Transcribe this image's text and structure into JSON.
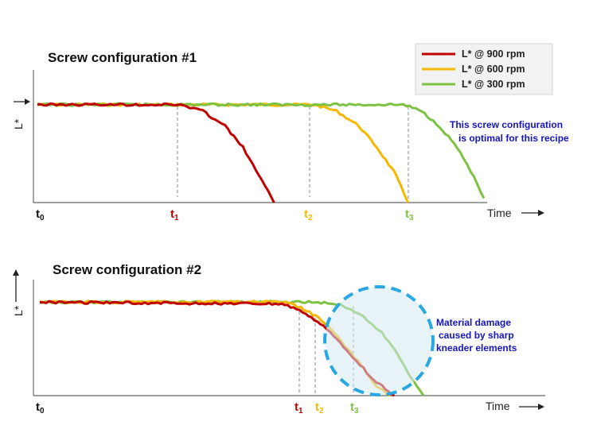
{
  "colors": {
    "rpm900": "#c00000",
    "rpm600": "#f4b800",
    "rpm300": "#7dc242",
    "note": "#1515c0",
    "circle": "#28a8e0"
  },
  "legend": [
    {
      "label": "L* @ 900 rpm",
      "color": "#c00000"
    },
    {
      "label": "L* @ 600 rpm",
      "color": "#f4b800"
    },
    {
      "label": "L* @ 300 rpm",
      "color": "#7dc242"
    }
  ],
  "chart_data": [
    {
      "type": "line",
      "title": "Screw configuration #1",
      "ylabel": "L*",
      "xlabel": "Time",
      "time_labels": [
        {
          "base": "t",
          "sub": "0",
          "color": "#111111"
        },
        {
          "base": "t",
          "sub": "1",
          "color": "#c00000"
        },
        {
          "base": "t",
          "sub": "2",
          "color": "#f4b800"
        },
        {
          "base": "t",
          "sub": "3",
          "color": "#7dc242"
        }
      ],
      "annotation": [
        "This screw configuration",
        "is optimal for this recipe"
      ],
      "series": [
        {
          "color": "#f4b800",
          "values": [
            [
              0,
              0.92
            ],
            [
              0.62,
              0.92
            ],
            [
              0.67,
              0.86
            ],
            [
              0.72,
              0.72
            ],
            [
              0.76,
              0.52
            ],
            [
              0.8,
              0.28
            ],
            [
              0.83,
              0.0
            ]
          ]
        },
        {
          "color": "#7dc242",
          "values": [
            [
              0,
              0.92
            ],
            [
              0.82,
              0.92
            ],
            [
              0.86,
              0.86
            ],
            [
              0.9,
              0.72
            ],
            [
              0.94,
              0.52
            ],
            [
              0.97,
              0.3
            ],
            [
              1.0,
              0.04
            ]
          ]
        },
        {
          "color": "#c00000",
          "values": [
            [
              0,
              0.92
            ],
            [
              0.32,
              0.92
            ],
            [
              0.37,
              0.86
            ],
            [
              0.42,
              0.72
            ],
            [
              0.46,
              0.52
            ],
            [
              0.49,
              0.3
            ],
            [
              0.53,
              0.0
            ]
          ]
        }
      ]
    },
    {
      "type": "line",
      "title": "Screw configuration #2",
      "ylabel": "L*",
      "xlabel": "Time",
      "time_labels": [
        {
          "base": "t",
          "sub": "0",
          "color": "#111111"
        },
        {
          "base": "t",
          "sub": "1",
          "color": "#c00000"
        },
        {
          "base": "t",
          "sub": "2",
          "color": "#f4b800"
        },
        {
          "base": "t",
          "sub": "3",
          "color": "#7dc242"
        }
      ],
      "annotation": [
        "Material damage",
        "caused by sharp",
        "kneader elements"
      ],
      "series": [
        {
          "color": "#7dc242",
          "values": [
            [
              0,
              0.92
            ],
            [
              0.66,
              0.92
            ],
            [
              0.72,
              0.9
            ],
            [
              0.77,
              0.8
            ],
            [
              0.82,
              0.62
            ],
            [
              0.86,
              0.4
            ],
            [
              0.89,
              0.18
            ],
            [
              0.92,
              0.0
            ]
          ]
        },
        {
          "color": "#f4b800",
          "values": [
            [
              0,
              0.92
            ],
            [
              0.59,
              0.92
            ],
            [
              0.64,
              0.84
            ],
            [
              0.69,
              0.7
            ],
            [
              0.73,
              0.5
            ],
            [
              0.77,
              0.3
            ],
            [
              0.8,
              0.12
            ],
            [
              0.84,
              0.0
            ]
          ]
        },
        {
          "color": "#c00000",
          "values": [
            [
              0,
              0.92
            ],
            [
              0.58,
              0.9
            ],
            [
              0.63,
              0.83
            ],
            [
              0.68,
              0.68
            ],
            [
              0.72,
              0.52
            ],
            [
              0.76,
              0.34
            ],
            [
              0.8,
              0.16
            ],
            [
              0.85,
              0.0
            ]
          ]
        }
      ]
    }
  ]
}
